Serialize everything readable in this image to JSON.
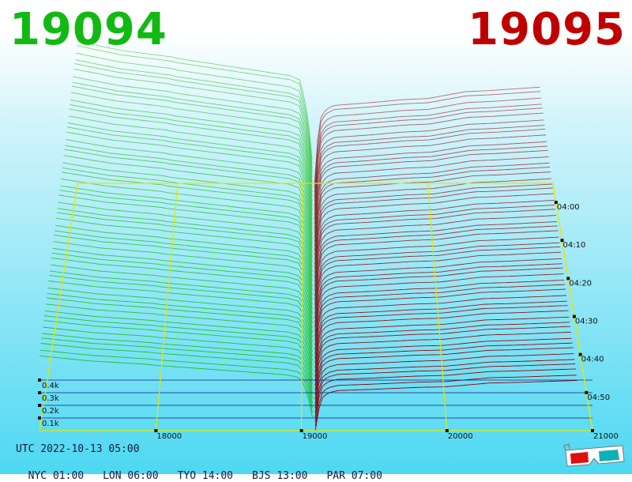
{
  "header": {
    "bid_price": "19094",
    "ask_price": "19095",
    "bid_color": "#12b912",
    "ask_color": "#c00000"
  },
  "footer": {
    "utc": "UTC 2022-10-13 05:00",
    "cities": [
      {
        "label": "NYC 01:00"
      },
      {
        "label": "LON 06:00"
      },
      {
        "label": "TYO 14:00"
      },
      {
        "label": "BJS 13:00"
      },
      {
        "label": "PAR 07:00"
      }
    ],
    "anaglyph_icon": "3d-glasses-icon"
  },
  "chart_data": {
    "type": "area",
    "x": {
      "ticks": [
        "18000",
        "19000",
        "20000",
        "21000"
      ],
      "range": [
        17200,
        21000
      ]
    },
    "y": {
      "ticks": [
        "0.1k",
        "0.2k",
        "0.3k",
        "0.4k"
      ],
      "range": [
        0,
        700
      ]
    },
    "time": {
      "ticks": [
        "04:00",
        "04:10",
        "04:20",
        "04:30",
        "04:40",
        "04:50"
      ],
      "range_minutes": [
        235,
        300
      ],
      "snapshots": 56
    },
    "mid_price": 19094.5,
    "bid_depth": {
      "x": [
        17200,
        17550,
        17950,
        18000,
        18300,
        18600,
        18900,
        18980,
        19040,
        19094
      ],
      "y": [
        620,
        580,
        552,
        545,
        520,
        495,
        470,
        450,
        300,
        0
      ]
    },
    "ask_depth": {
      "x": [
        19095,
        19130,
        19180,
        19250,
        19500,
        19800,
        20000,
        20300,
        20500,
        20900
      ],
      "y": [
        0,
        270,
        320,
        340,
        350,
        365,
        370,
        400,
        405,
        420
      ]
    },
    "colors": {
      "bid": "#1fbf1f",
      "ask": "#8c0000",
      "axis": "#e6e600",
      "grid": "#1a1a80"
    }
  }
}
